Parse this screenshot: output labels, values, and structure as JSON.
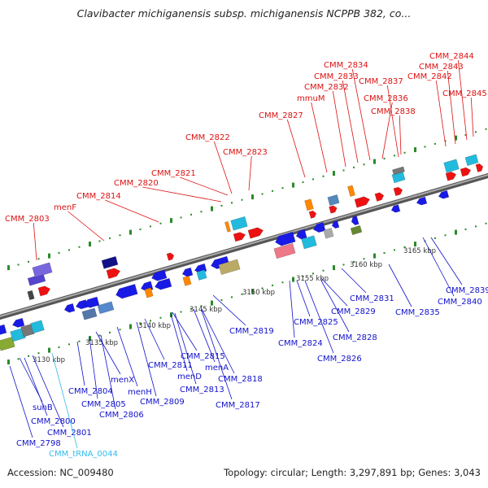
{
  "title": "Clavibacter michiganensis subsp. michiganensis NCPPB 382, co...",
  "footer": {
    "accession": "Accession: NC_009480",
    "topology": "Topology: circular; Length: 3,297,891 bp; Genes: 3,043"
  },
  "scale_labels": [
    "3130 kbp",
    "3135 kbp",
    "3140 kbp",
    "3145 kbp",
    "3150 kbp",
    "3155 kbp",
    "3160 kbp",
    "3165 kbp"
  ],
  "colors": {
    "top_labels": "#dd1111",
    "bottom_labels": "#1111cc",
    "trna_label": "#33bbee",
    "forward_genes": "#ee1111",
    "reverse_genes": "#1a1ae6",
    "backbone": "#888888",
    "ticks": "#2a8a2a"
  },
  "top_labels": [
    "CMM_2803",
    "menF",
    "CMM_2814",
    "CMM_2820",
    "CMM_2821",
    "CMM_2822",
    "CMM_2823",
    "CMM_2827",
    "mmuM",
    "CMM_2832",
    "CMM_2833",
    "CMM_2834",
    "CMM_2837",
    "CMM_2836",
    "CMM_2838",
    "CMM_2842",
    "CMM_2843",
    "CMM_2844",
    "CMM_2845"
  ],
  "bottom_labels": [
    "CMM_2798",
    "CMM_2800",
    "CMM_2801",
    "suhB",
    "CMM_2804",
    "CMM_2805",
    "CMM_2806",
    "menX",
    "menH",
    "CMM_2809",
    "CMM_2811",
    "menD",
    "CMM_2813",
    "menA",
    "CMM_2815",
    "CMM_2818",
    "CMM_2817",
    "CMM_2819",
    "CMM_2824",
    "CMM_2825",
    "CMM_2826",
    "CMM_2828",
    "CMM_2829",
    "CMM_2831",
    "CMM_2835",
    "CMM_2839",
    "CMM_2840"
  ],
  "trna_label": "CMM_tRNA_0044"
}
